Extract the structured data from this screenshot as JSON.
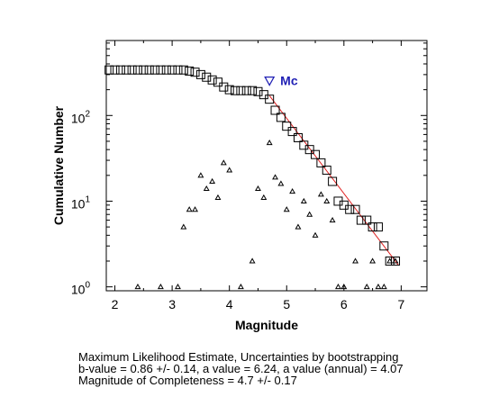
{
  "chart_data": {
    "type": "scatter",
    "xlabel": "Magnitude",
    "ylabel": "Cumulative Number",
    "xlim": [
      1.85,
      7.45
    ],
    "ylim": [
      0.9,
      750
    ],
    "yscale": "log",
    "grid": false,
    "x_ticks": [
      2,
      3,
      4,
      5,
      6,
      7
    ],
    "y_ticks": [
      {
        "value": 1,
        "base": "10",
        "exp": "0"
      },
      {
        "value": 10,
        "base": "10",
        "exp": "1"
      },
      {
        "value": 100,
        "base": "10",
        "exp": "2"
      }
    ],
    "series": [
      {
        "marker": "square",
        "color": "#000000",
        "points": [
          [
            1.9,
            340
          ],
          [
            2.0,
            340
          ],
          [
            2.1,
            340
          ],
          [
            2.2,
            340
          ],
          [
            2.3,
            340
          ],
          [
            2.4,
            340
          ],
          [
            2.5,
            340
          ],
          [
            2.6,
            340
          ],
          [
            2.7,
            340
          ],
          [
            2.8,
            340
          ],
          [
            2.9,
            340
          ],
          [
            3.0,
            340
          ],
          [
            3.1,
            340
          ],
          [
            3.2,
            340
          ],
          [
            3.3,
            330
          ],
          [
            3.4,
            320
          ],
          [
            3.5,
            300
          ],
          [
            3.6,
            280
          ],
          [
            3.7,
            260
          ],
          [
            3.8,
            245
          ],
          [
            3.9,
            215
          ],
          [
            4.0,
            200
          ],
          [
            4.1,
            195
          ],
          [
            4.2,
            195
          ],
          [
            4.3,
            195
          ],
          [
            4.4,
            195
          ],
          [
            4.5,
            190
          ],
          [
            4.6,
            175
          ],
          [
            4.7,
            155
          ],
          [
            4.8,
            115
          ],
          [
            4.9,
            95
          ],
          [
            5.0,
            75
          ],
          [
            5.1,
            65
          ],
          [
            5.2,
            55
          ],
          [
            5.3,
            45
          ],
          [
            5.4,
            40
          ],
          [
            5.5,
            35
          ],
          [
            5.6,
            28
          ],
          [
            5.7,
            23
          ],
          [
            5.8,
            17
          ],
          [
            5.9,
            10
          ],
          [
            6.0,
            9
          ],
          [
            6.1,
            8
          ],
          [
            6.2,
            8
          ],
          [
            6.3,
            6
          ],
          [
            6.4,
            6
          ],
          [
            6.5,
            5
          ],
          [
            6.6,
            5
          ],
          [
            6.7,
            3
          ],
          [
            6.8,
            2
          ],
          [
            6.9,
            2
          ]
        ]
      },
      {
        "marker": "triangle",
        "color": "#000000",
        "points": [
          [
            2.4,
            1
          ],
          [
            2.8,
            1
          ],
          [
            3.1,
            1
          ],
          [
            3.2,
            5
          ],
          [
            3.3,
            8
          ],
          [
            3.4,
            8
          ],
          [
            3.5,
            20
          ],
          [
            3.6,
            14
          ],
          [
            3.7,
            17
          ],
          [
            3.8,
            11
          ],
          [
            3.9,
            28
          ],
          [
            4.0,
            23
          ],
          [
            4.2,
            1
          ],
          [
            4.4,
            2
          ],
          [
            4.5,
            14
          ],
          [
            4.6,
            11
          ],
          [
            4.7,
            48
          ],
          [
            4.8,
            19
          ],
          [
            4.9,
            16
          ],
          [
            5.0,
            8
          ],
          [
            5.1,
            13
          ],
          [
            5.2,
            5
          ],
          [
            5.3,
            10
          ],
          [
            5.4,
            7
          ],
          [
            5.5,
            4
          ],
          [
            5.6,
            12
          ],
          [
            5.7,
            10
          ],
          [
            5.8,
            6
          ],
          [
            5.9,
            1
          ],
          [
            6.0,
            1
          ],
          [
            6.2,
            2
          ],
          [
            6.4,
            1
          ],
          [
            6.5,
            2
          ],
          [
            6.6,
            1
          ],
          [
            6.7,
            1
          ],
          [
            6.8,
            2
          ],
          [
            6.9,
            2
          ]
        ]
      }
    ],
    "fit_line": {
      "color": "#e02020",
      "x": [
        4.7,
        6.95
      ],
      "y": [
        170,
        1.8
      ]
    },
    "mc_marker": {
      "x": 4.7,
      "y": 255,
      "label": "Mc",
      "color": "#1f1fb4"
    }
  },
  "caption": {
    "line1": "Maximum Likelihood Estimate, Uncertainties by bootstrapping",
    "line2": "b-value = 0.86 +/- 0.14,  a value = 6.24,  a value (annual) = 4.07",
    "line3": "Magnitude of Completeness = 4.7 +/- 0.17"
  }
}
